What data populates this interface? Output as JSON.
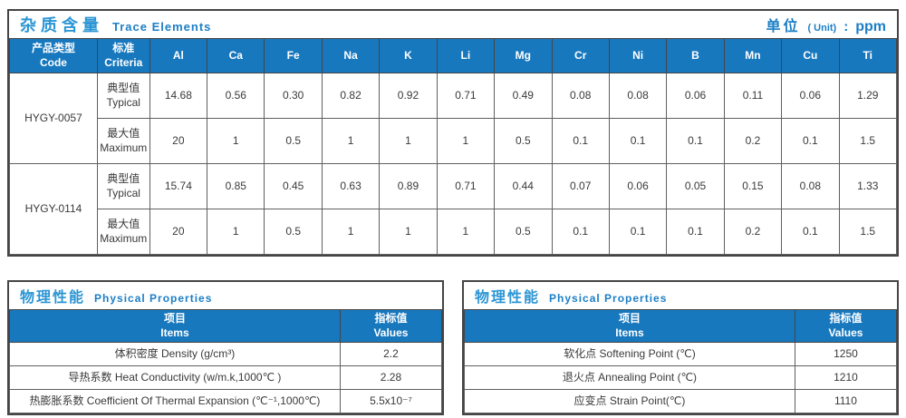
{
  "trace_table": {
    "title_zh": "杂质含量",
    "title_en": "Trace Elements",
    "unit_label_zh": "单位",
    "unit_label_paren": "( Unit)",
    "unit_colon": ":",
    "unit_value": "ppm",
    "code_header_zh": "产品类型",
    "code_header_en": "Code",
    "criteria_header_zh": "标准",
    "criteria_header_en": "Criteria",
    "elements": [
      "Al",
      "Ca",
      "Fe",
      "Na",
      "K",
      "Li",
      "Mg",
      "Cr",
      "Ni",
      "B",
      "Mn",
      "Cu",
      "Ti"
    ],
    "products": [
      {
        "code": "HYGY-0057",
        "rows": [
          {
            "label_zh": "典型值",
            "label_en": "Typical",
            "values": [
              "14.68",
              "0.56",
              "0.30",
              "0.82",
              "0.92",
              "0.71",
              "0.49",
              "0.08",
              "0.08",
              "0.06",
              "0.11",
              "0.06",
              "1.29"
            ]
          },
          {
            "label_zh": "最大值",
            "label_en": "Maximum",
            "values": [
              "20",
              "1",
              "0.5",
              "1",
              "1",
              "1",
              "0.5",
              "0.1",
              "0.1",
              "0.1",
              "0.2",
              "0.1",
              "1.5"
            ]
          }
        ]
      },
      {
        "code": "HYGY-0114",
        "rows": [
          {
            "label_zh": "典型值",
            "label_en": "Typical",
            "values": [
              "15.74",
              "0.85",
              "0.45",
              "0.63",
              "0.89",
              "0.71",
              "0.44",
              "0.07",
              "0.06",
              "0.05",
              "0.15",
              "0.08",
              "1.33"
            ]
          },
          {
            "label_zh": "最大值",
            "label_en": "Maximum",
            "values": [
              "20",
              "1",
              "0.5",
              "1",
              "1",
              "1",
              "0.5",
              "0.1",
              "0.1",
              "0.1",
              "0.2",
              "0.1",
              "1.5"
            ]
          }
        ]
      }
    ]
  },
  "physical_tables": [
    {
      "title_zh": "物理性能",
      "title_en": "Physical Properties",
      "items_header_zh": "项目",
      "items_header_en": "Items",
      "values_header_zh": "指标值",
      "values_header_en": "Values",
      "rows": [
        {
          "item": "体积密度 Density (g/cm³)",
          "value": "2.2"
        },
        {
          "item": "导热系数 Heat Conductivity (w/m.k,1000℃ )",
          "value": "2.28"
        },
        {
          "item": "热膨胀系数 Coefficient Of Thermal Expansion (℃⁻¹,1000℃)",
          "value": "5.5x10⁻⁷"
        }
      ]
    },
    {
      "title_zh": "物理性能",
      "title_en": "Physical Properties",
      "items_header_zh": "项目",
      "items_header_en": "Items",
      "values_header_zh": "指标值",
      "values_header_en": "Values",
      "rows": [
        {
          "item": "软化点 Softening Point (℃)",
          "value": "1250"
        },
        {
          "item": "退火点 Annealing Point (℃)",
          "value": "1210"
        },
        {
          "item": "应变点 Strain Point(℃)",
          "value": "1110"
        }
      ]
    }
  ],
  "colors": {
    "header_blue": "#1878be",
    "title_blue": "#2b95d4",
    "subtitle_blue": "#1b7ec6",
    "border_dark": "#454545",
    "cell_text": "#3a3a3a"
  }
}
